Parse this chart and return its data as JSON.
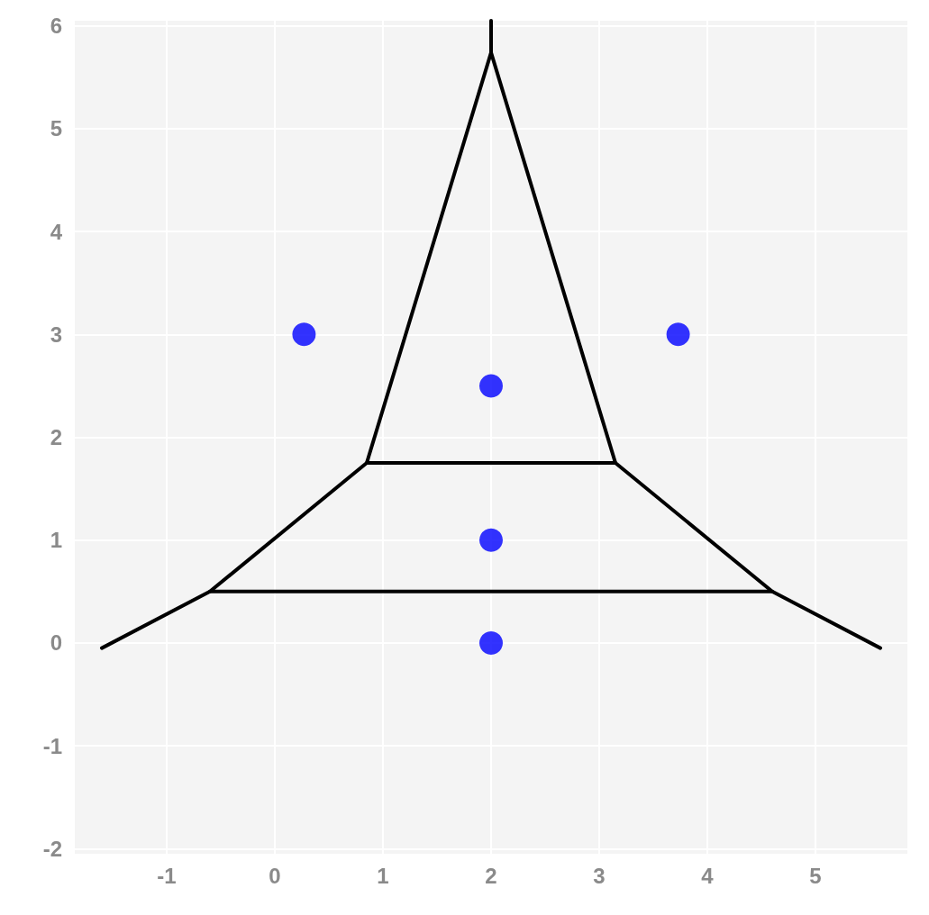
{
  "chart_data": {
    "type": "scatter",
    "xlim": [
      -1.85,
      5.85
    ],
    "ylim": [
      -2.05,
      6.05
    ],
    "xticks": [
      -1,
      0,
      1,
      2,
      3,
      4,
      5
    ],
    "yticks": [
      -2,
      -1,
      0,
      1,
      2,
      3,
      4,
      5,
      6
    ],
    "grid": true,
    "marker": "circle",
    "x": [
      0.27,
      3.73,
      2,
      2,
      2
    ],
    "values": [
      3,
      3,
      2.5,
      1,
      0
    ],
    "color": "#0000ff",
    "series": [
      {
        "type": "line",
        "color": "#000000",
        "marker": "none",
        "x": [
          -1.6,
          -0.6,
          0.85,
          2,
          3.15,
          4.6,
          5.6
        ],
        "values": [
          -0.05,
          0.5,
          1.75,
          5.74,
          1.75,
          0.5,
          -0.05
        ]
      },
      {
        "type": "line",
        "color": "#000000",
        "marker": "none",
        "x": [
          0.85,
          3.15
        ],
        "values": [
          1.75,
          1.75
        ]
      },
      {
        "type": "line",
        "color": "#000000",
        "marker": "none",
        "x": [
          -0.6,
          4.6
        ],
        "values": [
          0.5,
          0.5
        ]
      },
      {
        "type": "line",
        "color": "#000000",
        "marker": "none",
        "x": [
          2,
          2
        ],
        "values": [
          5.74,
          6.05
        ]
      }
    ]
  }
}
